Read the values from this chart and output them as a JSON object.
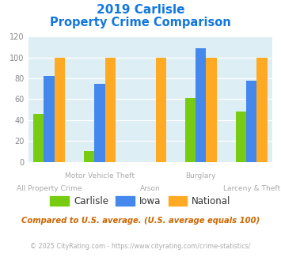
{
  "title_line1": "2019 Carlisle",
  "title_line2": "Property Crime Comparison",
  "categories": [
    "All Property Crime",
    "Motor Vehicle Theft",
    "Arson",
    "Burglary",
    "Larceny & Theft"
  ],
  "carlisle": [
    46,
    10,
    0,
    61,
    48
  ],
  "iowa": [
    82,
    75,
    0,
    109,
    78
  ],
  "national": [
    100,
    100,
    100,
    100,
    100
  ],
  "carlisle_color": "#77cc11",
  "iowa_color": "#4488ee",
  "national_color": "#ffaa22",
  "title_color": "#1177dd",
  "ylim": [
    0,
    120
  ],
  "yticks": [
    0,
    20,
    40,
    60,
    80,
    100,
    120
  ],
  "background_color": "#ddeef5",
  "footnote1": "Compared to U.S. average. (U.S. average equals 100)",
  "footnote2": "© 2025 CityRating.com - https://www.cityrating.com/crime-statistics/",
  "footnote1_color": "#cc6600",
  "footnote2_color": "#aaaaaa",
  "footnote2_link_color": "#4488ee",
  "label_color": "#aaaaaa",
  "bar_width": 0.25,
  "group_positions": [
    0.5,
    1.7,
    2.9,
    4.1,
    5.3
  ]
}
